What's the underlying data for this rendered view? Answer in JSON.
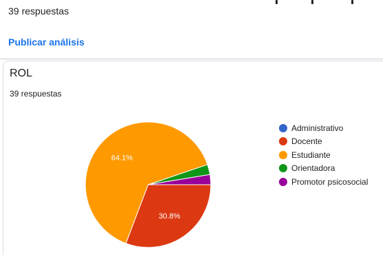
{
  "top": {
    "responses": "39 respuestas",
    "publish_label": "Publicar análisis"
  },
  "question": {
    "title": "ROL",
    "responses": "39 respuestas"
  },
  "colors": {
    "link": "#1a73e8"
  },
  "chart_data": {
    "type": "pie",
    "categories": [
      "Administrativo",
      "Docente",
      "Estudiante",
      "Orientadora",
      "Promotor psicosocial"
    ],
    "values": [
      0,
      30.8,
      64.1,
      2.6,
      2.6
    ],
    "colors": [
      "#3366cc",
      "#dc3912",
      "#ff9900",
      "#109618",
      "#990099"
    ],
    "data_labels": {
      "1": "30.8%",
      "2": "64.1%"
    },
    "legend_position": "right"
  }
}
